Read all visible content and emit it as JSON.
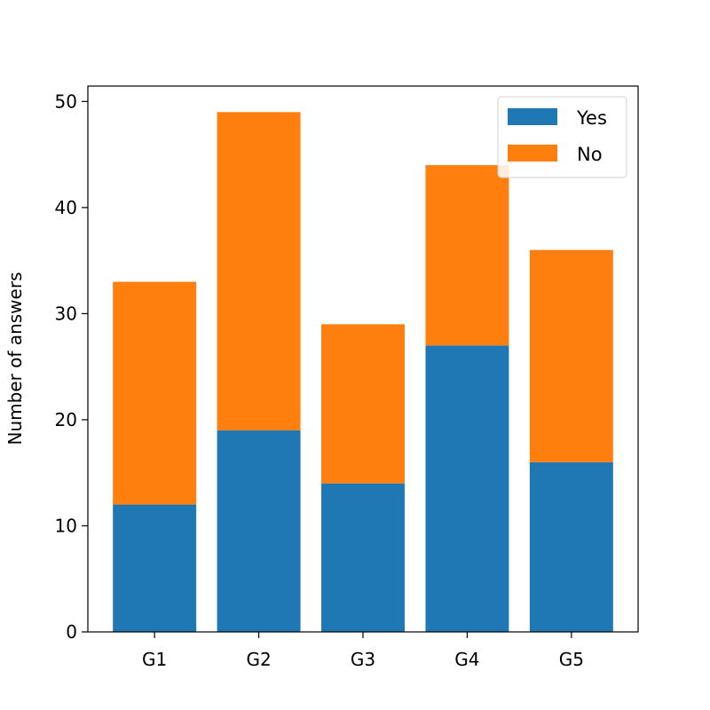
{
  "chart_data": {
    "type": "bar",
    "stacked": true,
    "title": "",
    "xlabel": "",
    "ylabel": "Number of answers",
    "categories": [
      "G1",
      "G2",
      "G3",
      "G4",
      "G5"
    ],
    "series": [
      {
        "name": "Yes",
        "values": [
          12,
          19,
          14,
          27,
          16
        ],
        "color": "#1f77b4"
      },
      {
        "name": "No",
        "values": [
          21,
          30,
          15,
          17,
          20
        ],
        "color": "#ff7f0e"
      }
    ],
    "ylim": [
      0,
      51.45
    ],
    "yticks": [
      0,
      10,
      20,
      30,
      40,
      50
    ],
    "grid": false,
    "legend_position": "top-right"
  }
}
